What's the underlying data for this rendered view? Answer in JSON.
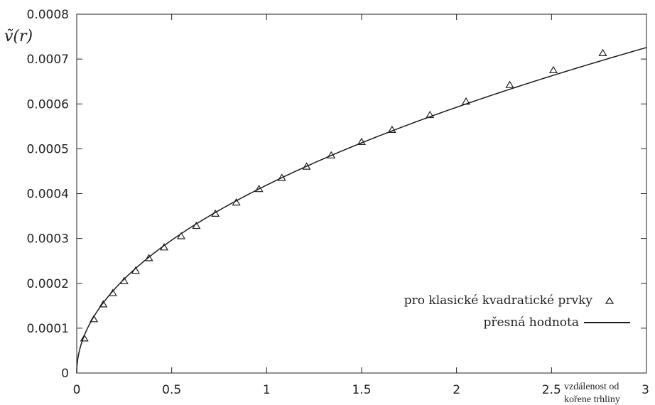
{
  "chart_data": {
    "type": "scatter",
    "title": "",
    "ylabel": "ṽ(r)",
    "xlabel": [
      "vzdálenost od",
      "kořene trhliny"
    ],
    "xlim": [
      0,
      3
    ],
    "ylim": [
      0,
      0.0008
    ],
    "grid": false,
    "legend_position": "bottom-right",
    "x_ticks": [
      "0",
      "0.5",
      "1",
      "1.5",
      "2",
      "2.5",
      "3"
    ],
    "y_ticks": [
      "0",
      "0.0001",
      "0.0002",
      "0.0003",
      "0.0004",
      "0.0005",
      "0.0006",
      "0.0007",
      "0.0008"
    ],
    "series": [
      {
        "name": "pro klasické kvadratické prvky",
        "kind": "scatter",
        "marker": "triangle",
        "x": [
          0.04,
          0.09,
          0.14,
          0.19,
          0.25,
          0.31,
          0.38,
          0.46,
          0.55,
          0.63,
          0.73,
          0.84,
          0.96,
          1.08,
          1.21,
          1.34,
          1.5,
          1.66,
          1.86,
          2.05,
          2.28,
          2.51,
          2.77
        ],
        "y": [
          7.7e-05,
          0.00012,
          0.000153,
          0.000178,
          0.000205,
          0.000228,
          0.000256,
          0.00028,
          0.000305,
          0.000328,
          0.000355,
          0.00038,
          0.00041,
          0.000435,
          0.00046,
          0.000485,
          0.000515,
          0.000542,
          0.000575,
          0.000605,
          0.000642,
          0.000675,
          0.000713
        ]
      },
      {
        "name": "přesná hodnota",
        "kind": "line",
        "function": "0.000419 * sqrt(x)"
      }
    ]
  },
  "colors": {
    "axis": "#222222",
    "line": "#1a1a1a",
    "marker": "#222222"
  }
}
